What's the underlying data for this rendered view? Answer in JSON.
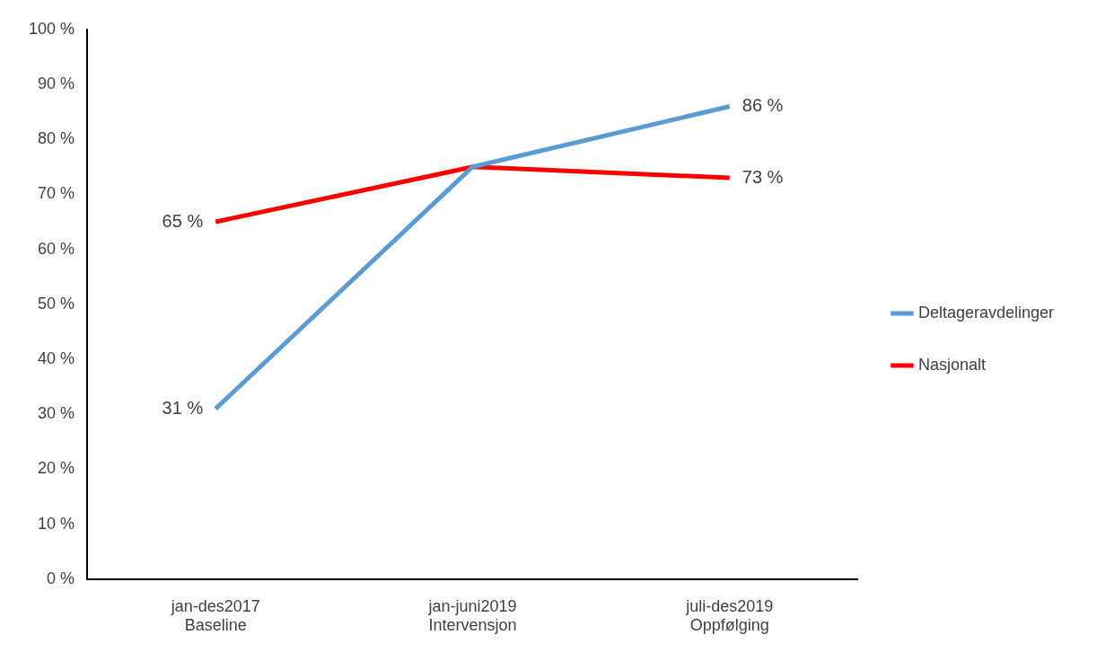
{
  "chart_data": {
    "type": "line",
    "categories": [
      "jan-des2017\nBaseline",
      "jan-juni2019\nIntervensjon",
      "juli-des2019\nOppfølging"
    ],
    "series": [
      {
        "name": "Deltageravdelinger",
        "color": "#5b9bd5",
        "values": [
          31,
          75,
          86
        ],
        "value_labels": [
          "31 %",
          null,
          "86 %"
        ]
      },
      {
        "name": "Nasjonalt",
        "color": "#ff0000",
        "values": [
          65,
          75,
          73
        ],
        "value_labels": [
          "65 %",
          null,
          "73 %"
        ]
      }
    ],
    "ylim": [
      0,
      100
    ],
    "yticks": [
      {
        "value": 0,
        "label": "0 %"
      },
      {
        "value": 10,
        "label": "10 %"
      },
      {
        "value": 20,
        "label": "20 %"
      },
      {
        "value": 30,
        "label": "30 %"
      },
      {
        "value": 40,
        "label": "40 %"
      },
      {
        "value": 50,
        "label": "50 %"
      },
      {
        "value": 60,
        "label": "60 %"
      },
      {
        "value": 70,
        "label": "70 %"
      },
      {
        "value": 80,
        "label": "80 %"
      },
      {
        "value": 90,
        "label": "90 %"
      },
      {
        "value": 100,
        "label": "100 %"
      }
    ],
    "grid": false,
    "legend": "right",
    "marker": "none",
    "line_style": "solid"
  }
}
